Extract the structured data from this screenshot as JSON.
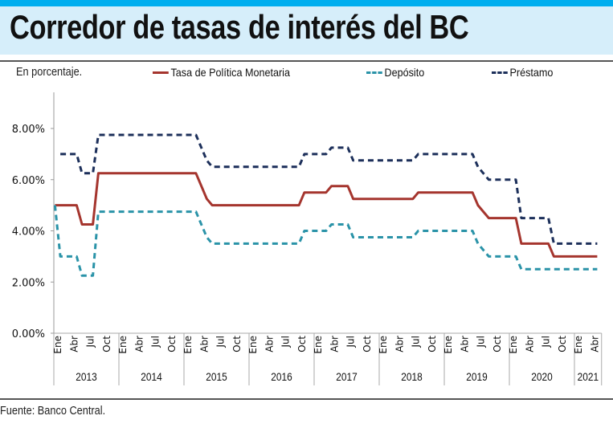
{
  "header": {
    "title": "Corredor de tasas de interés del BC",
    "subtitle": "En porcentaje.",
    "source": "Fuente: Banco Central."
  },
  "chart_data": {
    "type": "line",
    "title": "Corredor de tasas de interés del BC",
    "ylabel": "En porcentaje.",
    "ylim": [
      0,
      8
    ],
    "yticks": [
      "0.00%",
      "2.00%",
      "4.00%",
      "6.00%",
      "8.00%"
    ],
    "ytick_values": [
      0,
      2,
      4,
      6,
      8
    ],
    "x_unit": "month index from Ene 2013",
    "month_labels": [
      "Ene",
      "Abr",
      "Jul",
      "Oct"
    ],
    "years": [
      "2013",
      "2014",
      "2015",
      "2016",
      "2017",
      "2018",
      "2019",
      "2020",
      "2021"
    ],
    "months_total": 101,
    "legend": "top",
    "series": [
      {
        "name": "Tasa de Política Monetaria",
        "color": "#a5352e",
        "dash": false,
        "points": [
          [
            0,
            5.0
          ],
          [
            4,
            5.0
          ],
          [
            5,
            4.25
          ],
          [
            7,
            4.25
          ],
          [
            8,
            6.25
          ],
          [
            26,
            6.25
          ],
          [
            28,
            5.25
          ],
          [
            29,
            5.0
          ],
          [
            45,
            5.0
          ],
          [
            46,
            5.5
          ],
          [
            50,
            5.5
          ],
          [
            51,
            5.75
          ],
          [
            54,
            5.75
          ],
          [
            55,
            5.25
          ],
          [
            66,
            5.25
          ],
          [
            67,
            5.5
          ],
          [
            77,
            5.5
          ],
          [
            78,
            5.0
          ],
          [
            79,
            4.75
          ],
          [
            80,
            4.5
          ],
          [
            85,
            4.5
          ],
          [
            86,
            3.5
          ],
          [
            91,
            3.5
          ],
          [
            92,
            3.0
          ],
          [
            100,
            3.0
          ]
        ]
      },
      {
        "name": "Depósito",
        "color": "#2a93a8",
        "dash": true,
        "points": [
          [
            0,
            5.0
          ],
          [
            1,
            3.0
          ],
          [
            4,
            3.0
          ],
          [
            5,
            2.25
          ],
          [
            7,
            2.25
          ],
          [
            8,
            4.75
          ],
          [
            26,
            4.75
          ],
          [
            28,
            3.75
          ],
          [
            29,
            3.5
          ],
          [
            45,
            3.5
          ],
          [
            46,
            4.0
          ],
          [
            50,
            4.0
          ],
          [
            51,
            4.25
          ],
          [
            54,
            4.25
          ],
          [
            55,
            3.75
          ],
          [
            66,
            3.75
          ],
          [
            67,
            4.0
          ],
          [
            77,
            4.0
          ],
          [
            78,
            3.5
          ],
          [
            79,
            3.25
          ],
          [
            80,
            3.0
          ],
          [
            85,
            3.0
          ],
          [
            86,
            2.5
          ],
          [
            100,
            2.5
          ]
        ]
      },
      {
        "name": "Préstamo",
        "color": "#1c2f5a",
        "dash": true,
        "points": [
          [
            1,
            7.0
          ],
          [
            4,
            7.0
          ],
          [
            5,
            6.25
          ],
          [
            7,
            6.25
          ],
          [
            8,
            7.75
          ],
          [
            26,
            7.75
          ],
          [
            28,
            6.75
          ],
          [
            29,
            6.5
          ],
          [
            45,
            6.5
          ],
          [
            46,
            7.0
          ],
          [
            50,
            7.0
          ],
          [
            51,
            7.25
          ],
          [
            54,
            7.25
          ],
          [
            55,
            6.75
          ],
          [
            66,
            6.75
          ],
          [
            67,
            7.0
          ],
          [
            77,
            7.0
          ],
          [
            78,
            6.5
          ],
          [
            79,
            6.25
          ],
          [
            80,
            6.0
          ],
          [
            85,
            6.0
          ],
          [
            86,
            4.5
          ],
          [
            91,
            4.5
          ],
          [
            92,
            3.5
          ],
          [
            100,
            3.5
          ]
        ]
      }
    ]
  }
}
